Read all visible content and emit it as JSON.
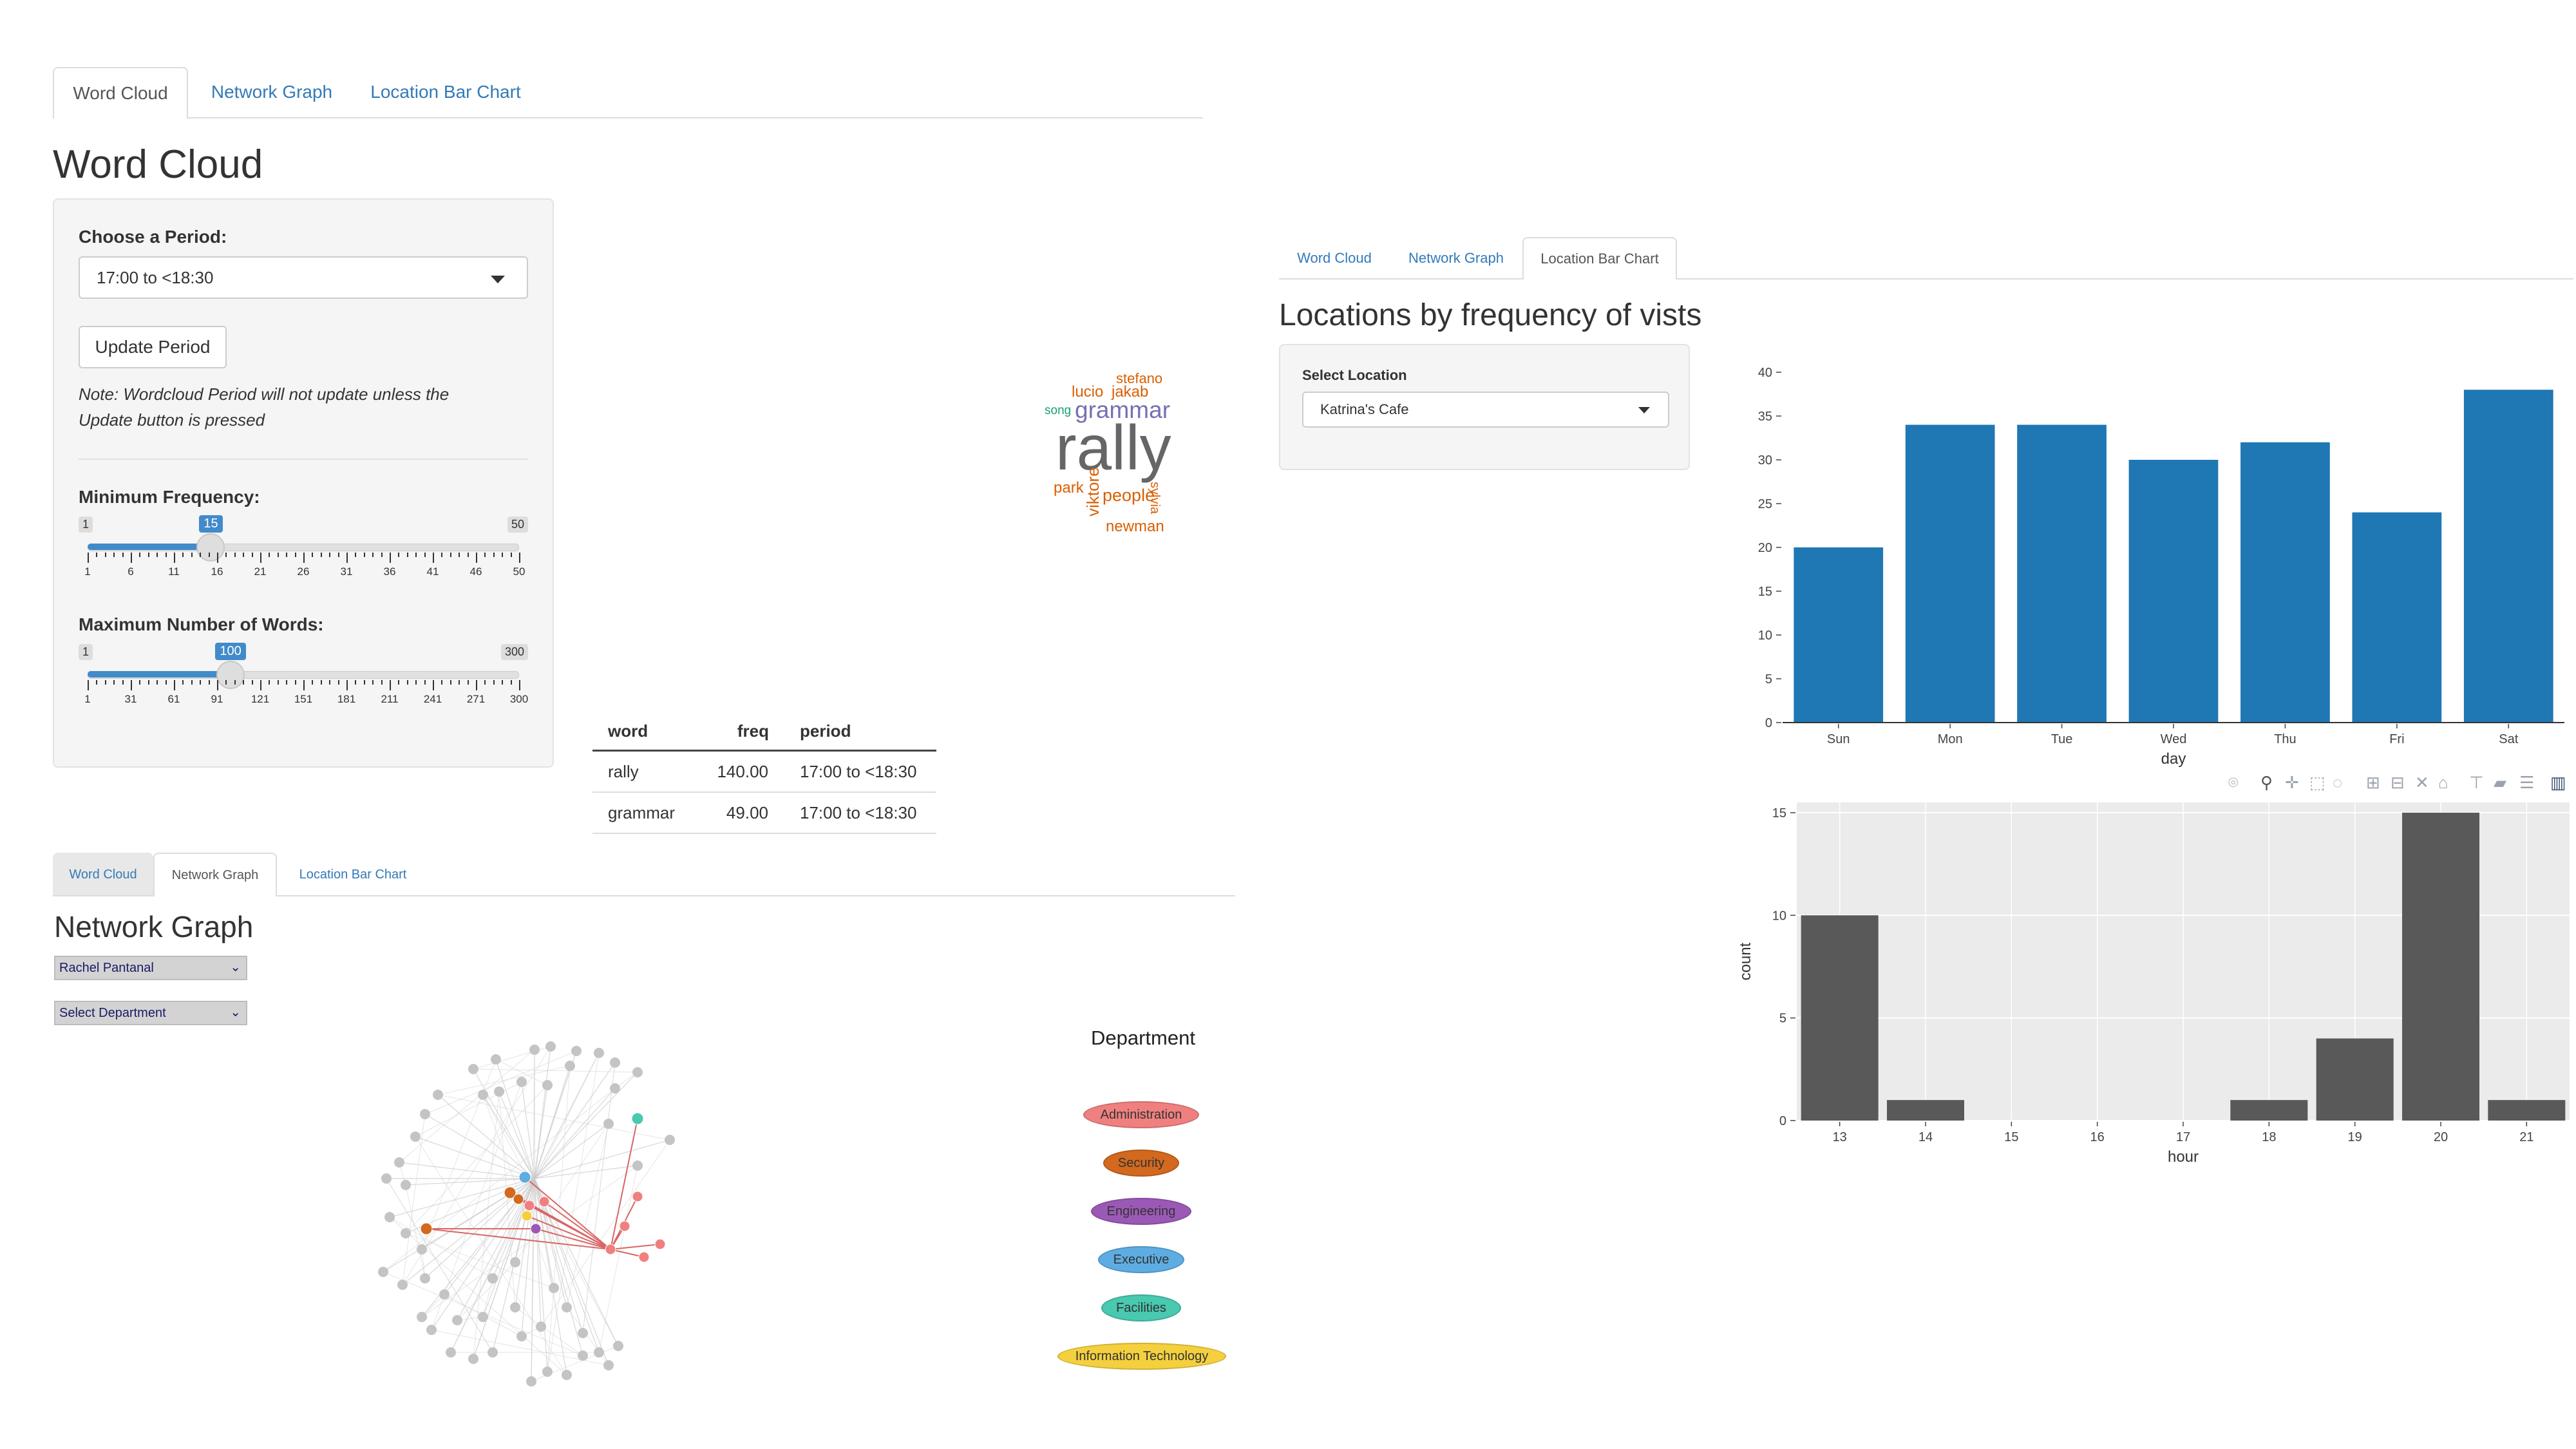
{
  "wordcloud_panel": {
    "tabs": [
      "Word Cloud",
      "Network Graph",
      "Location Bar Chart"
    ],
    "active_tab": 0,
    "title": "Word Cloud",
    "period_label": "Choose a Period:",
    "period_value": "17:00 to <18:30",
    "update_button": "Update Period",
    "note": "Note: Wordcloud Period will not update unless the Update button is pressed",
    "min_freq": {
      "label": "Minimum Frequency:",
      "min": "1",
      "max": "50",
      "value": "15",
      "fraction": 0.2857,
      "ticks": [
        "1",
        "6",
        "11",
        "16",
        "21",
        "26",
        "31",
        "36",
        "41",
        "46",
        "50"
      ]
    },
    "max_words": {
      "label": "Maximum Number of Words:",
      "min": "1",
      "max": "300",
      "value": "100",
      "fraction": 0.3311,
      "ticks": [
        "1",
        "31",
        "61",
        "91",
        "121",
        "151",
        "181",
        "211",
        "241",
        "271",
        "300"
      ]
    },
    "words": [
      {
        "text": "stefano",
        "color": "#d95f02"
      },
      {
        "text": "lucio",
        "color": "#d95f02"
      },
      {
        "text": "jakab",
        "color": "#d95f02"
      },
      {
        "text": "song",
        "color": "#1b9e77"
      },
      {
        "text": "grammar",
        "color": "#7570b3"
      },
      {
        "text": "rally",
        "color": "#666666"
      },
      {
        "text": "park",
        "color": "#d95f02"
      },
      {
        "text": "viktore",
        "color": "#d95f02"
      },
      {
        "text": "people",
        "color": "#d95f02"
      },
      {
        "text": "sylvia",
        "color": "#d95f02"
      },
      {
        "text": "newman",
        "color": "#d95f02"
      }
    ],
    "table": {
      "headers": [
        "word",
        "freq",
        "period"
      ],
      "rows": [
        [
          "rally",
          "140.00",
          "17:00 to <18:30"
        ],
        [
          "grammar",
          "49.00",
          "17:00 to <18:30"
        ]
      ]
    }
  },
  "network_panel": {
    "tabs": [
      "Word Cloud",
      "Network Graph",
      "Location Bar Chart"
    ],
    "active_tab": 1,
    "title": "Network Graph",
    "person_select": "Rachel Pantanal",
    "department_select": "Select Department",
    "legend_title": "Department",
    "legend": [
      {
        "label": "Administration",
        "color": "#f08080"
      },
      {
        "label": "Security",
        "color": "#d2691e"
      },
      {
        "label": "Engineering",
        "color": "#9b59b6"
      },
      {
        "label": "Executive",
        "color": "#5dade2"
      },
      {
        "label": "Facilities",
        "color": "#48c9b0"
      },
      {
        "label": "Information Technology",
        "color": "#f4d03f"
      }
    ]
  },
  "location_panel": {
    "tabs": [
      "Word Cloud",
      "Network Graph",
      "Location Bar Chart"
    ],
    "active_tab": 2,
    "title": "Locations by frequency of vists",
    "select_label": "Select Location",
    "select_value": "Katrina's Cafe",
    "toolbar_icons": [
      "camera-icon",
      "zoom-icon",
      "pan-icon",
      "box-select-icon",
      "lasso-icon",
      "zoom-in-icon",
      "zoom-out-icon",
      "autoscale-icon",
      "reset-axes-icon",
      "spike-lines-icon",
      "hover-closest-icon",
      "hover-compare-icon",
      "plotly-logo-icon"
    ]
  },
  "chart_data": [
    {
      "type": "bar",
      "categories": [
        "Sun",
        "Mon",
        "Tue",
        "Wed",
        "Thu",
        "Fri",
        "Sat"
      ],
      "values": [
        20,
        34,
        34,
        30,
        32,
        24,
        38
      ],
      "xlabel": "day",
      "ylabel": "",
      "ylim": [
        0,
        40
      ],
      "yticks": [
        "0",
        "5",
        "10",
        "15",
        "20",
        "25",
        "30",
        "35",
        "40"
      ],
      "color": "#1f77b4",
      "grid": false
    },
    {
      "type": "bar",
      "categories": [
        "13",
        "14",
        "15",
        "16",
        "17",
        "18",
        "19",
        "20",
        "21"
      ],
      "values": [
        10,
        1,
        0,
        0,
        0,
        1,
        4,
        15,
        1
      ],
      "xlabel": "hour",
      "ylabel": "count",
      "ylim": [
        0,
        15.5
      ],
      "yticks": [
        "0",
        "5",
        "10",
        "15"
      ],
      "color": "#595959",
      "background": "#ebebeb",
      "grid": true
    }
  ]
}
